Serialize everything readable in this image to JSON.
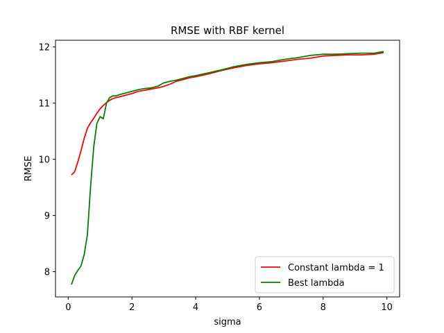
{
  "chart_data": {
    "type": "line",
    "title": "RMSE with RBF kernel",
    "xlabel": "sigma",
    "ylabel": "RMSE",
    "xlim": [
      -0.4,
      10.4
    ],
    "ylim": [
      7.55,
      12.12
    ],
    "xticks": [
      0,
      2,
      4,
      6,
      8,
      10
    ],
    "yticks": [
      8,
      9,
      10,
      11,
      12
    ],
    "grid": false,
    "legend_position": "lower-right",
    "series": [
      {
        "name": "Constant lambda = 1",
        "color": "#ff0000",
        "x": [
          0.1,
          0.2,
          0.3,
          0.4,
          0.5,
          0.6,
          0.7,
          0.8,
          0.9,
          1.0,
          1.1,
          1.2,
          1.3,
          1.4,
          1.5,
          1.6,
          1.8,
          2.0,
          2.2,
          2.4,
          2.6,
          2.8,
          3.0,
          3.2,
          3.4,
          3.6,
          3.8,
          4.0,
          4.4,
          4.8,
          5.2,
          5.6,
          6.0,
          6.4,
          6.8,
          7.2,
          7.6,
          8.0,
          8.4,
          8.8,
          9.2,
          9.6,
          9.9
        ],
        "y": [
          9.72,
          9.78,
          9.95,
          10.15,
          10.37,
          10.55,
          10.65,
          10.73,
          10.82,
          10.9,
          10.96,
          11.01,
          11.05,
          11.08,
          11.1,
          11.11,
          11.14,
          11.17,
          11.21,
          11.23,
          11.25,
          11.27,
          11.3,
          11.34,
          11.39,
          11.42,
          11.45,
          11.47,
          11.52,
          11.58,
          11.63,
          11.67,
          11.7,
          11.72,
          11.75,
          11.78,
          11.8,
          11.84,
          11.85,
          11.86,
          11.86,
          11.87,
          11.9
        ]
      },
      {
        "name": "Best lambda",
        "color": "#008000",
        "x": [
          0.1,
          0.2,
          0.3,
          0.4,
          0.5,
          0.6,
          0.7,
          0.8,
          0.9,
          1.0,
          1.1,
          1.2,
          1.3,
          1.4,
          1.5,
          1.6,
          1.8,
          2.0,
          2.2,
          2.4,
          2.6,
          2.8,
          3.0,
          3.2,
          3.4,
          3.6,
          3.8,
          4.0,
          4.4,
          4.8,
          5.2,
          5.6,
          6.0,
          6.4,
          6.8,
          7.2,
          7.6,
          8.0,
          8.4,
          8.8,
          9.2,
          9.6,
          9.9
        ],
        "y": [
          7.77,
          7.93,
          8.02,
          8.1,
          8.3,
          8.65,
          9.5,
          10.22,
          10.64,
          10.76,
          10.72,
          11.0,
          11.1,
          11.13,
          11.13,
          11.15,
          11.18,
          11.21,
          11.24,
          11.26,
          11.27,
          11.3,
          11.36,
          11.39,
          11.41,
          11.44,
          11.47,
          11.49,
          11.54,
          11.59,
          11.65,
          11.69,
          11.72,
          11.74,
          11.78,
          11.81,
          11.85,
          11.87,
          11.87,
          11.88,
          11.89,
          11.89,
          11.92
        ]
      }
    ]
  }
}
